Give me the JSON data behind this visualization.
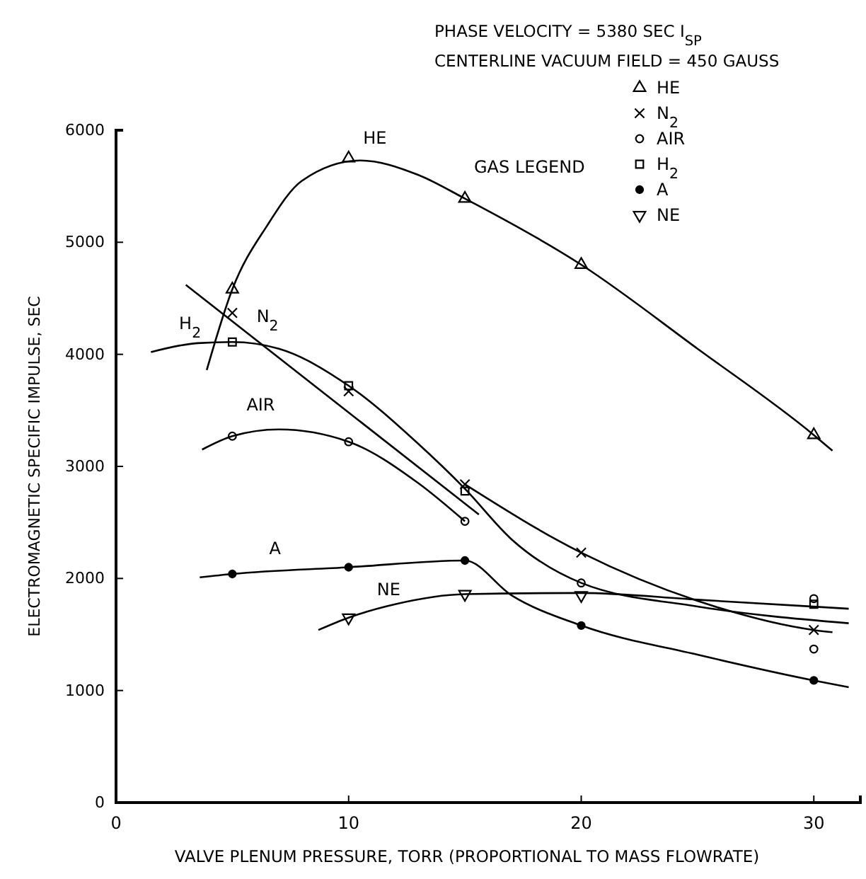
{
  "chart_data": {
    "type": "scatter",
    "title": "PHASE VELOCITY = 5380 SEC I$_{SP}$",
    "subtitle": "CENTERLINE VACUUM FIELD = 450 GAUSS",
    "xlabel": "VALVE PLENUM PRESSURE, TORR (PROPORTIONAL TO MASS FLOWRATE)",
    "ylabel": "ELECTROMAGNETIC SPECIFIC IMPULSE, SEC",
    "legend_title": "GAS LEGEND",
    "legend": "top right",
    "xlim": [
      0,
      32
    ],
    "xticks": [
      0,
      10,
      20,
      30
    ],
    "ylim": [
      0,
      6000
    ],
    "yticks": [
      0,
      1000,
      2000,
      3000,
      4000,
      5000,
      6000
    ],
    "series": [
      {
        "name": "HE",
        "color": "#000000",
        "marker": "triangle",
        "x": [
          5,
          10,
          15,
          20,
          30
        ],
        "values": [
          4580,
          5750,
          5390,
          4800,
          3280
        ]
      },
      {
        "name": "N$_{2}$",
        "color": "#000000",
        "marker": "cross",
        "x": [
          5,
          10,
          15,
          20,
          30
        ],
        "values": [
          4370,
          3670,
          2840,
          2230,
          1540
        ]
      },
      {
        "name": "AIR",
        "color": "#000000",
        "marker": "circle",
        "x": [
          5,
          10,
          15,
          20,
          30,
          30
        ],
        "values": [
          3270,
          3220,
          2510,
          1960,
          1820,
          1370
        ]
      },
      {
        "name": "H$_{2}$",
        "color": "#000000",
        "marker": "square",
        "x": [
          5,
          10,
          15,
          30
        ],
        "values": [
          4110,
          3720,
          2780,
          1770
        ]
      },
      {
        "name": "A",
        "color": "#000000",
        "marker": "dot",
        "x": [
          5,
          10,
          15,
          20,
          30
        ],
        "values": [
          2040,
          2100,
          2160,
          1580,
          1090
        ]
      },
      {
        "name": "NE",
        "color": "#000000",
        "marker": "triangle-down",
        "x": [
          10,
          15,
          20
        ],
        "values": [
          1650,
          1860,
          1850
        ]
      },
      {
        "type": "line",
        "name": "HE",
        "color": "#000000",
        "marker": "none",
        "x": [
          3.9,
          5,
          6.5,
          8,
          10.5,
          13,
          15,
          20,
          25,
          30,
          30.8
        ],
        "values": [
          3860,
          4580,
          5150,
          5550,
          5730,
          5600,
          5390,
          4800,
          4050,
          3280,
          3140
        ]
      },
      {
        "type": "line",
        "name": "N$_{2}$",
        "color": "#000000",
        "marker": "none",
        "x": [
          3,
          15.6
        ],
        "values": [
          4620,
          2570
        ]
      },
      {
        "type": "line",
        "color": "#000000",
        "marker": "none",
        "x": [
          15,
          20,
          25,
          30,
          30.8
        ],
        "values": [
          2840,
          2230,
          1800,
          1540,
          1520
        ]
      },
      {
        "type": "line",
        "name": "H$_{2}$",
        "color": "#000000",
        "marker": "none",
        "x": [
          1.5,
          3.5,
          5,
          7,
          10,
          13,
          15,
          17,
          20,
          25,
          31.5
        ],
        "values": [
          4020,
          4100,
          4110,
          4050,
          3720,
          3200,
          2800,
          2350,
          1960,
          1750,
          1600
        ]
      },
      {
        "type": "line",
        "name": "AIR",
        "color": "#000000",
        "marker": "none",
        "x": [
          3.7,
          5,
          7,
          10,
          13,
          15
        ],
        "values": [
          3150,
          3270,
          3330,
          3220,
          2850,
          2510
        ]
      },
      {
        "type": "line",
        "name": "A",
        "color": "#000000",
        "marker": "none",
        "x": [
          3.6,
          5,
          10,
          15,
          17,
          20,
          25,
          30,
          31.5
        ],
        "values": [
          2010,
          2040,
          2100,
          2160,
          1850,
          1580,
          1320,
          1090,
          1030
        ]
      },
      {
        "type": "line",
        "name": "NE",
        "color": "#000000",
        "marker": "none",
        "x": [
          8.7,
          10,
          12,
          15,
          20,
          25,
          31.5
        ],
        "values": [
          1540,
          1650,
          1770,
          1860,
          1870,
          1810,
          1730
        ]
      }
    ]
  }
}
